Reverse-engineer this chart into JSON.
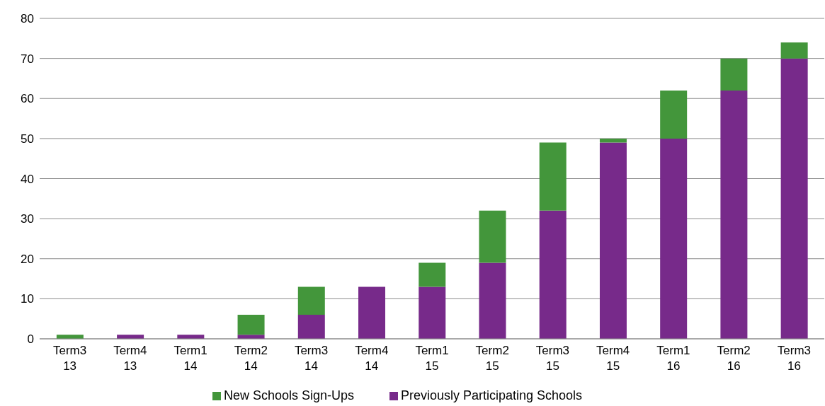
{
  "chart_data": {
    "type": "bar",
    "stacked": true,
    "categories": [
      "Term3 13",
      "Term4 13",
      "Term1 14",
      "Term2 14",
      "Term3 14",
      "Term4 14",
      "Term1 15",
      "Term2 15",
      "Term3 15",
      "Term4 15",
      "Term1 16",
      "Term2 16",
      "Term3 16"
    ],
    "series": [
      {
        "name": "Previously Participating Schools",
        "color": "#772a8a",
        "values": [
          0,
          1,
          1,
          1,
          6,
          13,
          13,
          19,
          32,
          49,
          50,
          62,
          70
        ]
      },
      {
        "name": "New Schools Sign-Ups",
        "color": "#43963b",
        "values": [
          1,
          0,
          0,
          5,
          7,
          0,
          6,
          13,
          17,
          1,
          12,
          8,
          4
        ]
      }
    ],
    "ylim": [
      0,
      80
    ],
    "yticks": [
      0,
      10,
      20,
      30,
      40,
      50,
      60,
      70,
      80
    ],
    "grid": "y",
    "legend": "bottom"
  }
}
